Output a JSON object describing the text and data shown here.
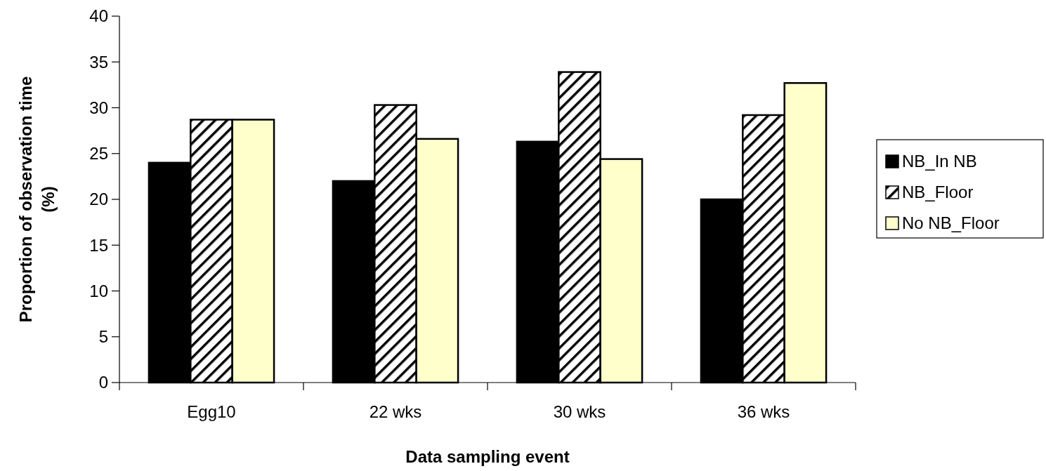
{
  "chart_data": {
    "type": "bar",
    "xlabel": "Data sampling event",
    "ylabel": "Proportion of observation time (%)",
    "categories": [
      "Egg10",
      "22 wks",
      "30 wks",
      "36 wks"
    ],
    "series": [
      {
        "name": "NB_In NB",
        "color": "#000000",
        "values": [
          24.0,
          22.0,
          26.3,
          20.0
        ]
      },
      {
        "name": "NB_Floor",
        "color": "#000000",
        "values": [
          28.7,
          30.3,
          33.9,
          29.2
        ]
      },
      {
        "name": "No NB_Floor",
        "color": "#ffffcc",
        "values": [
          28.7,
          26.6,
          24.4,
          32.7
        ]
      }
    ],
    "ylim": [
      0,
      40
    ],
    "yticks": [
      0,
      5,
      10,
      15,
      20,
      25,
      30,
      35,
      40
    ],
    "grid": false,
    "legend": "right"
  }
}
